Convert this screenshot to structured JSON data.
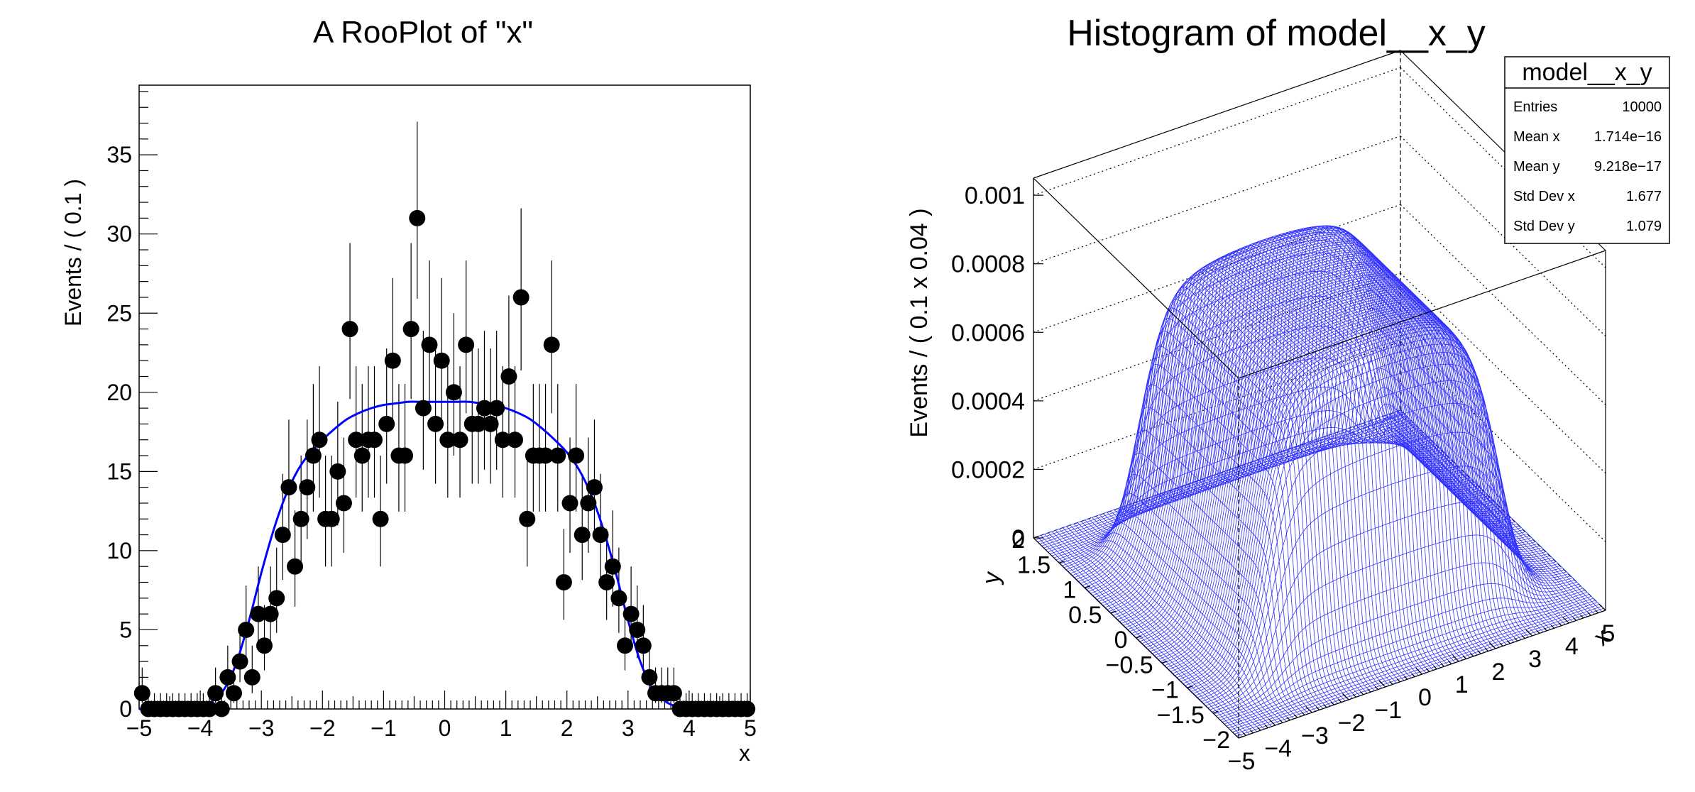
{
  "chart_data": [
    {
      "type": "scatter",
      "title": "A RooPlot of \"x\"",
      "xlabel": "x",
      "ylabel": "Events / ( 0.1 )",
      "xlim": [
        -5,
        5
      ],
      "ylim": [
        0,
        39.4
      ],
      "x_ticks": [
        "−5",
        "−4",
        "−3",
        "−2",
        "−1",
        "0",
        "1",
        "2",
        "3",
        "4",
        "5"
      ],
      "y_ticks": [
        "0",
        "5",
        "10",
        "15",
        "20",
        "25",
        "30",
        "35"
      ],
      "grid": false,
      "data_color": "#000000",
      "curve_color": "#0000ff",
      "points": {
        "x": [
          -4.95,
          -4.85,
          -4.75,
          -4.65,
          -4.55,
          -4.45,
          -4.35,
          -4.25,
          -4.15,
          -4.05,
          -3.95,
          -3.85,
          -3.75,
          -3.65,
          -3.55,
          -3.45,
          -3.35,
          -3.25,
          -3.15,
          -3.05,
          -2.95,
          -2.85,
          -2.75,
          -2.65,
          -2.55,
          -2.45,
          -2.35,
          -2.25,
          -2.15,
          -2.05,
          -1.95,
          -1.85,
          -1.75,
          -1.65,
          -1.55,
          -1.45,
          -1.35,
          -1.25,
          -1.15,
          -1.05,
          -0.95,
          -0.85,
          -0.75,
          -0.65,
          -0.55,
          -0.45,
          -0.35,
          -0.25,
          -0.15,
          -0.05,
          0.05,
          0.15,
          0.25,
          0.35,
          0.45,
          0.55,
          0.65,
          0.75,
          0.85,
          0.95,
          1.05,
          1.15,
          1.25,
          1.35,
          1.45,
          1.55,
          1.65,
          1.75,
          1.85,
          1.95,
          2.05,
          2.15,
          2.25,
          2.35,
          2.45,
          2.55,
          2.65,
          2.75,
          2.85,
          2.95,
          3.05,
          3.15,
          3.25,
          3.35,
          3.45,
          3.55,
          3.65,
          3.75,
          3.85,
          3.95,
          4.05,
          4.15,
          4.25,
          4.35,
          4.45,
          4.55,
          4.65,
          4.75,
          4.85,
          4.95
        ],
        "y": [
          1,
          0,
          0,
          0,
          0,
          0,
          0,
          0,
          0,
          0,
          0,
          0,
          1,
          0,
          2,
          1,
          3,
          5,
          2,
          6,
          4,
          6,
          7,
          11,
          14,
          9,
          12,
          14,
          16,
          17,
          12,
          12,
          15,
          13,
          24,
          17,
          16,
          17,
          17,
          12,
          18,
          22,
          16,
          16,
          24,
          31,
          19,
          23,
          18,
          22,
          17,
          20,
          17,
          23,
          18,
          18,
          19,
          18,
          19,
          17,
          21,
          17,
          26,
          12,
          16,
          16,
          16,
          23,
          16,
          8,
          13,
          16,
          11,
          13,
          14,
          11,
          8,
          9,
          7,
          4,
          6,
          5,
          4,
          2,
          1,
          1,
          1,
          1,
          0,
          0,
          0,
          0,
          0,
          0,
          0,
          0,
          0,
          0,
          0,
          0
        ]
      },
      "curve": {
        "x": [
          -5,
          -4.5,
          -4,
          -3.8,
          -3.6,
          -3.4,
          -3.2,
          -3,
          -2.8,
          -2.6,
          -2.4,
          -2.2,
          -2,
          -1.8,
          -1.6,
          -1.4,
          -1.2,
          -1,
          -0.8,
          -0.6,
          -0.4,
          -0.2,
          0,
          0.2,
          0.4,
          0.6,
          0.8,
          1,
          1.2,
          1.4,
          1.6,
          1.8,
          2,
          2.2,
          2.4,
          2.6,
          2.8,
          3,
          3.2,
          3.4,
          3.6,
          3.8,
          4,
          4.5,
          5
        ],
        "y": [
          0,
          0.01,
          0.15,
          0.5,
          1.3,
          3,
          5.6,
          8.6,
          11.3,
          13.5,
          15.1,
          16.2,
          17,
          17.7,
          18.3,
          18.7,
          19,
          19.2,
          19.3,
          19.4,
          19.4,
          19.4,
          19.4,
          19.4,
          19.4,
          19.3,
          19.2,
          19,
          18.7,
          18.3,
          17.7,
          17,
          16.2,
          15.1,
          13.5,
          11.3,
          8.6,
          5.6,
          3,
          1.3,
          0.5,
          0.15,
          0.01,
          0,
          0
        ]
      }
    },
    {
      "type": "surface",
      "title": "Histogram of model__x_y",
      "xlabel": "x",
      "ylabel": "y",
      "zlabel": "Events / ( 0.1 x 0.04 )",
      "xlim": [
        -5,
        5
      ],
      "ylim": [
        -2,
        2
      ],
      "zlim": [
        0,
        0.00105
      ],
      "x_ticks": [
        "−5",
        "−4",
        "−3",
        "−2",
        "−1",
        "0",
        "1",
        "2",
        "3",
        "4",
        "5"
      ],
      "y_ticks": [
        "−2",
        "−1.5",
        "−1",
        "−0.5",
        "0",
        "0.5",
        "1",
        "1.5",
        "2"
      ],
      "z_ticks": [
        "0",
        "0.0002",
        "0.0004",
        "0.0006",
        "0.0008",
        "0.001"
      ],
      "mesh_color": "#3232ff",
      "model": {
        "x_plateau": 3.2,
        "x_edge_width": 0.3,
        "y_plateau": 1.42,
        "y_edge_width": 0.08,
        "peak": 0.00083
      },
      "stats_box": {
        "title": "model__x_y",
        "rows": [
          {
            "label": "Entries",
            "value": "10000"
          },
          {
            "label": "Mean x",
            "value": "1.714e−16"
          },
          {
            "label": "Mean y",
            "value": "9.218e−17"
          },
          {
            "label": "Std Dev x",
            "value": "1.677"
          },
          {
            "label": "Std Dev y",
            "value": "1.079"
          }
        ]
      }
    }
  ]
}
